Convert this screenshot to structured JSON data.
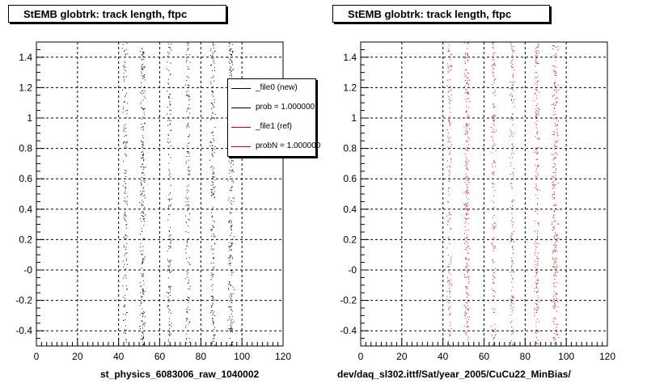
{
  "canvas": {
    "background": "#ffffff"
  },
  "panels": [
    {
      "title": "StEMB globtrk: track length, ftpc",
      "xcaption": "st_physics_6083006_raw_1040002",
      "marker_color": "#000000"
    },
    {
      "title": "StEMB globtrk: track length, ftpc",
      "xcaption": "dev/daq_sl302.ittf/Sat/year_2005/CuCu22_MinBias/",
      "marker_color": "#e00000"
    }
  ],
  "legend": {
    "entries": [
      {
        "label": "_file0 (new)",
        "color": "#000000"
      },
      {
        "label": "prob = 1.000000",
        "color": "#000000"
      },
      {
        "label": "_file1 (ref)",
        "color": "#cc0000"
      },
      {
        "label": "probN = 1.000000",
        "color": "#cc0000"
      }
    ]
  },
  "chart_data": [
    {
      "type": "scatter",
      "title": "StEMB globtrk: track length, ftpc",
      "xlabel": "st_physics_6083006_raw_1040002",
      "ylabel": "",
      "xlim": [
        0,
        120
      ],
      "ylim": [
        -0.5,
        1.5
      ],
      "xticks": [
        "0",
        "20",
        "40",
        "60",
        "80",
        "100",
        "120"
      ],
      "yticks": [
        "-0.4",
        "-0.2",
        "-0",
        "0.2",
        "0.4",
        "0.6",
        "0.8",
        "1",
        "1.2",
        "1.4"
      ],
      "grid": true,
      "series": [
        {
          "color": "#000000",
          "bands": [
            {
              "x": 43,
              "spread": 1.4,
              "density": 0.6
            },
            {
              "x": 51.5,
              "spread": 1.5,
              "density": 1.0
            },
            {
              "x": 64.5,
              "spread": 1.3,
              "density": 0.6
            },
            {
              "x": 73.5,
              "spread": 1.3,
              "density": 0.6
            },
            {
              "x": 85.5,
              "spread": 1.5,
              "density": 0.8
            },
            {
              "x": 94.5,
              "spread": 1.8,
              "density": 1.0
            }
          ]
        }
      ]
    },
    {
      "type": "scatter",
      "title": "StEMB globtrk: track length, ftpc",
      "xlabel": "dev/daq_sl302.ittf/Sat/year_2005/CuCu22_MinBias/",
      "ylabel": "",
      "xlim": [
        0,
        120
      ],
      "ylim": [
        -0.5,
        1.5
      ],
      "xticks": [
        "0",
        "20",
        "40",
        "60",
        "80",
        "100",
        "120"
      ],
      "yticks": [
        "-0.4",
        "-0.2",
        "-0",
        "0.2",
        "0.4",
        "0.6",
        "0.8",
        "1",
        "1.2",
        "1.4"
      ],
      "grid": true,
      "series": [
        {
          "color": "#e00000",
          "bands": [
            {
              "x": 43,
              "spread": 1.4,
              "density": 0.6
            },
            {
              "x": 51.5,
              "spread": 1.5,
              "density": 1.0
            },
            {
              "x": 64.5,
              "spread": 1.3,
              "density": 0.6
            },
            {
              "x": 73.5,
              "spread": 1.3,
              "density": 0.6
            },
            {
              "x": 85.5,
              "spread": 1.5,
              "density": 0.8
            },
            {
              "x": 94.5,
              "spread": 1.8,
              "density": 1.0
            }
          ]
        }
      ]
    }
  ]
}
